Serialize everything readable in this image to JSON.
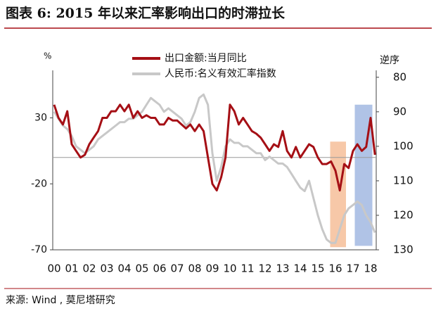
{
  "chart_data": {
    "type": "line",
    "title": "图表 6:  2015 年以来汇率影响出口的时滞拉长",
    "y_unit": "%",
    "y2_unit": "逆序",
    "source": "来源:  Wind ,  莫尼塔研究",
    "x": [
      2000,
      2000.25,
      2000.5,
      2000.75,
      2001,
      2001.25,
      2001.5,
      2001.75,
      2002,
      2002.25,
      2002.5,
      2002.75,
      2003,
      2003.25,
      2003.5,
      2003.75,
      2004,
      2004.25,
      2004.5,
      2004.75,
      2005,
      2005.25,
      2005.5,
      2005.75,
      2006,
      2006.25,
      2006.5,
      2006.75,
      2007,
      2007.25,
      2007.5,
      2007.75,
      2008,
      2008.25,
      2008.5,
      2008.75,
      2009,
      2009.25,
      2009.5,
      2009.75,
      2010,
      2010.25,
      2010.5,
      2010.75,
      2011,
      2011.25,
      2011.5,
      2011.75,
      2012,
      2012.25,
      2012.5,
      2012.75,
      2013,
      2013.25,
      2013.5,
      2013.75,
      2014,
      2014.25,
      2014.5,
      2014.75,
      2015,
      2015.25,
      2015.5,
      2015.75,
      2016,
      2016.25,
      2016.5,
      2016.75,
      2017,
      2017.25,
      2017.5,
      2017.75,
      2018,
      2018.25
    ],
    "xlim": [
      2000,
      2018.4
    ],
    "xticks": [
      {
        "value": 2000,
        "label": "00"
      },
      {
        "value": 2001,
        "label": "01"
      },
      {
        "value": 2002,
        "label": "02"
      },
      {
        "value": 2003,
        "label": "03"
      },
      {
        "value": 2004,
        "label": "04"
      },
      {
        "value": 2005,
        "label": "05"
      },
      {
        "value": 2006,
        "label": "06"
      },
      {
        "value": 2007,
        "label": "07"
      },
      {
        "value": 2008,
        "label": "08"
      },
      {
        "value": 2009,
        "label": "09"
      },
      {
        "value": 2010,
        "label": "10"
      },
      {
        "value": 2011,
        "label": "11"
      },
      {
        "value": 2012,
        "label": "12"
      },
      {
        "value": 2013,
        "label": "13"
      },
      {
        "value": 2014,
        "label": "14"
      },
      {
        "value": 2015,
        "label": "15"
      },
      {
        "value": 2016,
        "label": "16"
      },
      {
        "value": 2017,
        "label": "17"
      },
      {
        "value": 2018,
        "label": "18"
      }
    ],
    "ylim": [
      -70,
      66
    ],
    "yticks": [
      30,
      -20,
      -70
    ],
    "y2lim": [
      130,
      78
    ],
    "y2ticks": [
      80,
      90,
      100,
      110,
      120,
      130
    ],
    "series": [
      {
        "name": "出口金额:当月同比",
        "color": "#a50f15",
        "values": [
          40,
          30,
          25,
          35,
          10,
          5,
          0,
          2,
          10,
          15,
          20,
          30,
          30,
          35,
          35,
          40,
          35,
          40,
          30,
          35,
          30,
          32,
          30,
          30,
          25,
          25,
          30,
          28,
          28,
          25,
          22,
          25,
          20,
          25,
          20,
          0,
          -20,
          -25,
          -15,
          0,
          40,
          35,
          25,
          30,
          25,
          20,
          18,
          15,
          10,
          5,
          10,
          8,
          20,
          5,
          0,
          8,
          0,
          5,
          10,
          8,
          0,
          -5,
          -5,
          -3,
          -10,
          -25,
          -5,
          -8,
          5,
          10,
          5,
          8,
          30,
          2
        ]
      },
      {
        "name": "人民币:名义有效汇率指数",
        "color": "#c8c8c8",
        "axis": "y2",
        "values": [
          90,
          92,
          94,
          95,
          97,
          100,
          101,
          102,
          101,
          100,
          98,
          97,
          96,
          95,
          94,
          93,
          93,
          92,
          92,
          91,
          90,
          88,
          86,
          87,
          88,
          90,
          89,
          90,
          91,
          92,
          94,
          93,
          90,
          86,
          85,
          88,
          102,
          110,
          106,
          100,
          98,
          99,
          99,
          100,
          100,
          101,
          102,
          102,
          104,
          103,
          104,
          105,
          105,
          106,
          108,
          110,
          112,
          113,
          110,
          115,
          120,
          124,
          127,
          128,
          128,
          124,
          120,
          118,
          117,
          116,
          117,
          120,
          122,
          125
        ]
      }
    ],
    "highlights": [
      {
        "x": [
          2015.7,
          2016.6
        ],
        "y": [
          -68,
          12
        ],
        "color": "#f4b183"
      },
      {
        "x": [
          2017.1,
          2018.1
        ],
        "y": [
          -67,
          40
        ],
        "color": "#8faadc"
      }
    ],
    "legend": "top"
  }
}
